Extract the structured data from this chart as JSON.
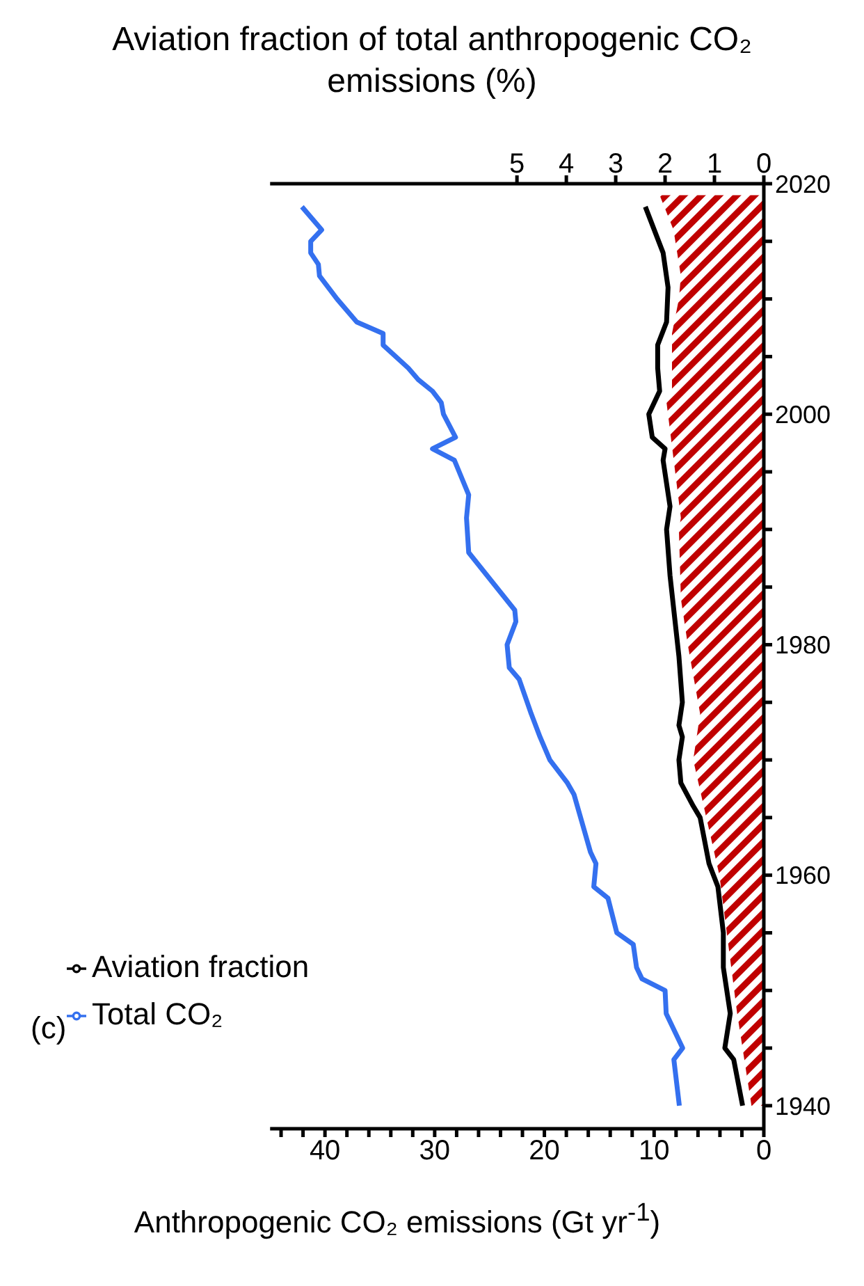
{
  "chart_data": {
    "type": "line",
    "orientation": "horizontal",
    "x2label": "Aviation fraction of total anthropogenic CO₂ emissions (%)",
    "xlabel": "Anthropogenic CO₂ emissions (Gt yr$^{-1}$)",
    "annotations": [
      "(c)"
    ],
    "xlim": [
      45,
      0
    ],
    "xticks": [
      0,
      {
        "value": 2,
        "label": null
      },
      {
        "value": 4,
        "label": null
      },
      {
        "value": 6,
        "label": null
      },
      {
        "value": 8,
        "label": null
      },
      10,
      {
        "value": 12,
        "label": null
      },
      {
        "value": 14,
        "label": null
      },
      {
        "value": 16,
        "label": null
      },
      {
        "value": 18,
        "label": null
      },
      20,
      {
        "value": 22,
        "label": null
      },
      {
        "value": 24,
        "label": null
      },
      {
        "value": 26,
        "label": null
      },
      {
        "value": 28,
        "label": null
      },
      30,
      {
        "value": 32,
        "label": null
      },
      {
        "value": 34,
        "label": null
      },
      {
        "value": 36,
        "label": null
      },
      {
        "value": 38,
        "label": null
      },
      40,
      {
        "value": 42,
        "label": null
      },
      {
        "value": 44,
        "label": null
      }
    ],
    "x2lim": [
      10,
      0
    ],
    "x2ticks": [
      0,
      1,
      2,
      3,
      4,
      5
    ],
    "ylim": [
      1938,
      2020
    ],
    "yticks": [
      1940,
      {
        "value": 1945,
        "label": null
      },
      {
        "value": 1950,
        "label": null
      },
      {
        "value": 1955,
        "label": null
      },
      1960,
      {
        "value": 1965,
        "label": null
      },
      {
        "value": 1970,
        "label": null
      },
      {
        "value": 1975,
        "label": null
      },
      1980,
      {
        "value": 1985,
        "label": null
      },
      {
        "value": 1990,
        "label": null
      },
      {
        "value": 1995,
        "label": null
      },
      2000,
      {
        "value": 2005,
        "label": null
      },
      {
        "value": 2010,
        "label": null
      },
      {
        "value": 2015,
        "label": null
      },
      2020
    ],
    "legend": "bottom left",
    "grid": false,
    "series": [
      {
        "name": "Total CO₂",
        "color": "#3470ef",
        "x": [
          1940,
          1944,
          1945,
          1948,
          1950,
          1951,
          1952,
          1954,
          1955,
          1958,
          1959,
          1961,
          1962,
          1967,
          1968,
          1970,
          1972,
          1974,
          1977,
          1978,
          1980,
          1982,
          1983,
          1988,
          1991,
          1993,
          1996,
          1997,
          1998,
          2000,
          2001,
          2002,
          2003,
          2004,
          2006,
          2007,
          2008,
          2010,
          2012,
          2013,
          2014,
          2015,
          2016,
          2018
        ],
        "values": [
          7.7,
          8.2,
          7.4,
          8.9,
          9.0,
          11.1,
          11.6,
          11.9,
          13.4,
          14.2,
          15.5,
          15.3,
          15.8,
          17.3,
          17.9,
          19.5,
          20.4,
          21.2,
          22.3,
          23.2,
          23.4,
          22.6,
          22.7,
          26.9,
          27.1,
          26.9,
          28.2,
          30.2,
          28.1,
          29.2,
          29.4,
          30.2,
          31.5,
          32.4,
          34.7,
          34.7,
          37.1,
          38.9,
          40.5,
          40.6,
          41.3,
          41.3,
          40.3,
          42.1
        ]
      },
      {
        "name": "Aviation fraction",
        "color": "#000000",
        "axis": "x2",
        "x": [
          1940,
          1944,
          1945,
          1948,
          1952,
          1955,
          1959,
          1961,
          1965,
          1966,
          1968,
          1970,
          1972,
          1973,
          1975,
          1979,
          1986,
          1990,
          1992,
          1996,
          1997,
          1998,
          2000,
          2002,
          2004,
          2006,
          2008,
          2011,
          2014,
          2018
        ],
        "values": [
          0.43,
          0.61,
          0.79,
          0.68,
          0.82,
          0.82,
          0.93,
          1.11,
          1.29,
          1.43,
          1.68,
          1.72,
          1.65,
          1.72,
          1.65,
          1.72,
          1.9,
          1.97,
          1.9,
          2.04,
          2.0,
          2.26,
          2.33,
          2.11,
          2.15,
          2.15,
          1.97,
          1.94,
          2.04,
          2.4
        ]
      },
      {
        "type": "area",
        "color": "#c00000",
        "axis": "x2",
        "x": [
          1940,
          1948,
          1960,
          1970,
          1974,
          1980,
          1984,
          1990,
          1991,
          2001,
          2002,
          2007,
          2010,
          2012,
          2016,
          2019
        ],
        "values": [
          0.25,
          0.54,
          0.9,
          1.43,
          1.29,
          1.54,
          1.68,
          1.72,
          1.68,
          1.97,
          1.86,
          1.86,
          1.72,
          1.68,
          1.83,
          2.11
        ]
      }
    ]
  }
}
